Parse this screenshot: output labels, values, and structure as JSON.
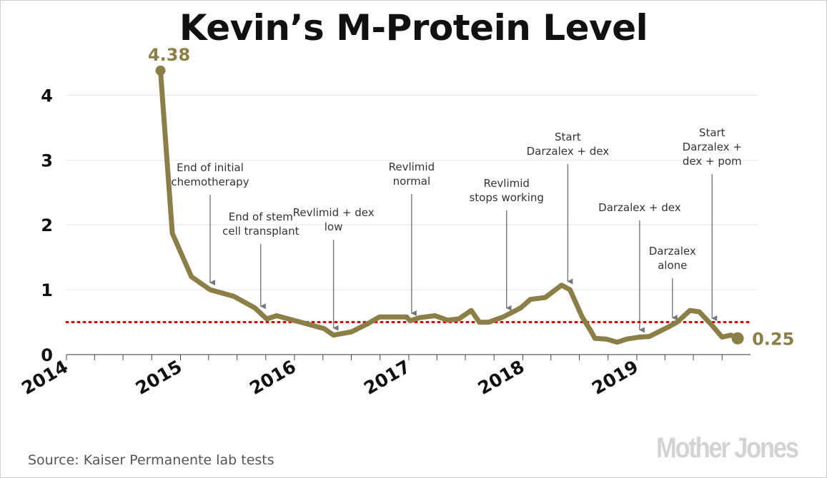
{
  "title": "Kevin’s M-Protein Level",
  "source": "Source: Kaiser Permanente lab tests",
  "logo": "Mother Jones",
  "colors": {
    "line": "#8b7f47",
    "reference": "#cc0000",
    "grid": "#e6e6e6",
    "annotation": "#333333",
    "arrow": "#777777"
  },
  "chart_data": {
    "type": "line",
    "title": "Kevin’s M-Protein Level",
    "xlabel": "",
    "ylabel": "",
    "x_range": [
      "2014-01-01",
      "2019-12-31"
    ],
    "x_ticks": [
      "2014",
      "2015",
      "2016",
      "2017",
      "2018",
      "2019"
    ],
    "ylim": [
      0,
      4.5
    ],
    "y_ticks": [
      0,
      1,
      2,
      3,
      4
    ],
    "grid": "horizontal",
    "reference_line": {
      "y": 0.5,
      "style": "dotted"
    },
    "series": [
      {
        "x": [
          "2014-10-29",
          "2014-12-06",
          "2015-02-05",
          "2015-04-06",
          "2015-06-20",
          "2015-08-27",
          "2015-10-04",
          "2015-11-05",
          "2015-12-05",
          "2016-02-05",
          "2016-04-05",
          "2016-05-05",
          "2016-07-01",
          "2016-08-20",
          "2016-09-29",
          "2016-11-20",
          "2016-12-25",
          "2017-01-05",
          "2017-02-05",
          "2017-03-26",
          "2017-05-05",
          "2017-06-10",
          "2017-07-20",
          "2017-08-15",
          "2017-09-14",
          "2017-10-30",
          "2017-12-25",
          "2018-01-25",
          "2018-03-14",
          "2018-05-05",
          "2018-06-01",
          "2018-07-10",
          "2018-08-05",
          "2018-08-20",
          "2018-09-25",
          "2018-10-30",
          "2018-11-30",
          "2019-01-10",
          "2019-02-10",
          "2019-04-10",
          "2019-05-10",
          "2019-06-20",
          "2019-07-20",
          "2019-08-30",
          "2019-10-01",
          "2019-10-30",
          "2019-11-20"
        ],
        "y": [
          4.38,
          1.87,
          1.2,
          1.0,
          0.9,
          0.72,
          0.55,
          0.6,
          0.56,
          0.48,
          0.4,
          0.3,
          0.35,
          0.47,
          0.58,
          0.58,
          0.58,
          0.52,
          0.57,
          0.6,
          0.53,
          0.55,
          0.68,
          0.5,
          0.5,
          0.58,
          0.72,
          0.85,
          0.88,
          1.07,
          1.0,
          0.58,
          0.38,
          0.25,
          0.24,
          0.19,
          0.24,
          0.27,
          0.28,
          0.42,
          0.5,
          0.68,
          0.66,
          0.45,
          0.27,
          0.3,
          0.25
        ]
      }
    ],
    "endpoint_labels": {
      "start": "4.38",
      "end": "0.25"
    },
    "annotations": [
      {
        "text": [
          "End of initial",
          "chemotherapy"
        ],
        "x": "2015-04-06"
      },
      {
        "text": [
          "End of stem",
          "cell transplant"
        ],
        "x": "2015-09-15"
      },
      {
        "text": [
          "Revlimid + dex",
          "low"
        ],
        "x": "2016-05-05"
      },
      {
        "text": [
          "Revlimid",
          "normal"
        ],
        "x": "2017-01-10"
      },
      {
        "text": [
          "Revlimid",
          "stops working"
        ],
        "x": "2017-11-10"
      },
      {
        "text": [
          "Start",
          "Darzalex + dex"
        ],
        "x": "2018-05-25"
      },
      {
        "text": [
          "Darzalex + dex"
        ],
        "x": "2019-01-10"
      },
      {
        "text": [
          "Darzalex",
          "alone"
        ],
        "x": "2019-04-25"
      },
      {
        "text": [
          "Start",
          "Darzalex +",
          "dex + pom"
        ],
        "x": "2019-08-30"
      }
    ]
  }
}
